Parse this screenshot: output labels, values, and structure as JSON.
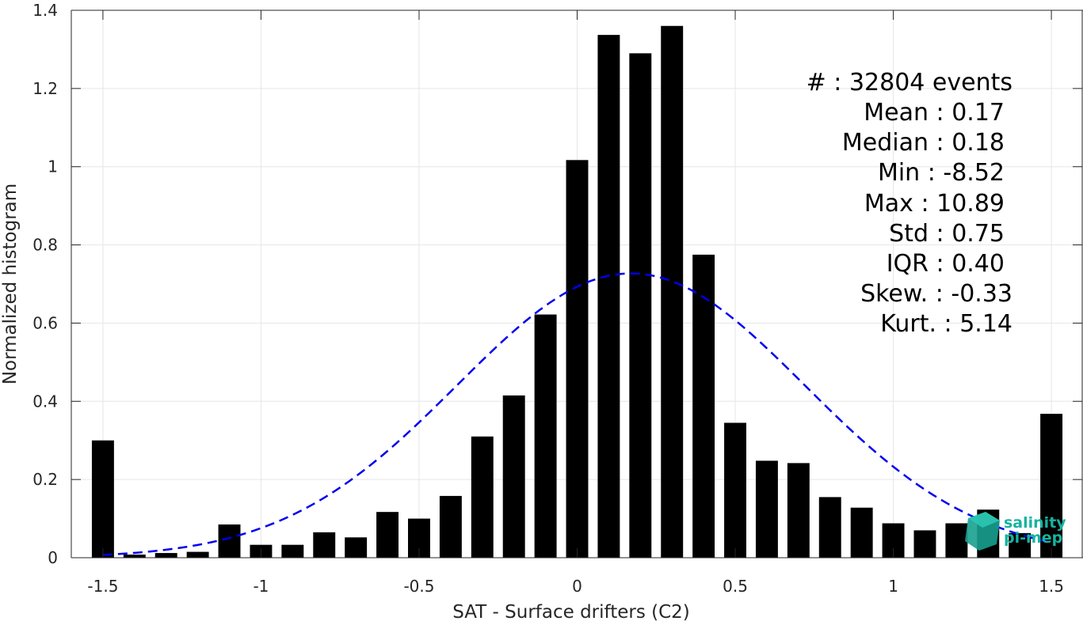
{
  "chart_data": {
    "type": "bar",
    "x": [
      -1.5,
      -1.4,
      -1.3,
      -1.2,
      -1.1,
      -1.0,
      -0.9,
      -0.8,
      -0.7,
      -0.6,
      -0.5,
      -0.4,
      -0.3,
      -0.2,
      -0.1,
      0.0,
      0.1,
      0.2,
      0.3,
      0.4,
      0.5,
      0.6,
      0.7,
      0.8,
      0.9,
      1.0,
      1.1,
      1.2,
      1.3,
      1.4,
      1.5
    ],
    "values": [
      0.3,
      0.008,
      0.012,
      0.015,
      0.085,
      0.033,
      0.033,
      0.065,
      0.052,
      0.117,
      0.1,
      0.158,
      0.31,
      0.415,
      0.622,
      1.017,
      1.337,
      1.29,
      1.36,
      0.775,
      0.345,
      0.248,
      0.242,
      0.155,
      0.128,
      0.088,
      0.07,
      0.088,
      0.123,
      0.063,
      0.368
    ],
    "bar_color": "#000000",
    "fit": {
      "type": "gaussian",
      "mean": 0.17,
      "std": 0.55,
      "peak": 0.727,
      "x_range": [
        -1.5,
        1.5
      ],
      "color": "#0000ee",
      "style": "dashed"
    },
    "xlabel": "SAT - Surface drifters (C2)",
    "ylabel": "Normalized histogram",
    "xlim": [
      -1.6,
      1.6
    ],
    "ylim": [
      0,
      1.4
    ],
    "xticks": [
      -1.5,
      -1,
      -0.5,
      0,
      0.5,
      1,
      1.5
    ],
    "xtick_labels": [
      "-1.5",
      "-1",
      "-0.5",
      "0",
      "0.5",
      "1",
      "1.5"
    ],
    "yticks": [
      0,
      0.2,
      0.4,
      0.6,
      0.8,
      1,
      1.2,
      1.4
    ],
    "ytick_labels": [
      "0",
      "0.2",
      "0.4",
      "0.6",
      "0.8",
      "1",
      "1.2",
      "1.4"
    ],
    "grid": true,
    "annotations": [
      "#  : 32804 events",
      "Mean : 0.17",
      "Median : 0.18",
      "Min : -8.52",
      "Max : 10.89",
      "Std : 0.75",
      "IQR : 0.40",
      "Skew. : -0.33",
      "Kurt. : 5.14"
    ]
  },
  "logo": {
    "line1": "salinity",
    "line2": "pi-mep",
    "color": "#17b3a0"
  }
}
